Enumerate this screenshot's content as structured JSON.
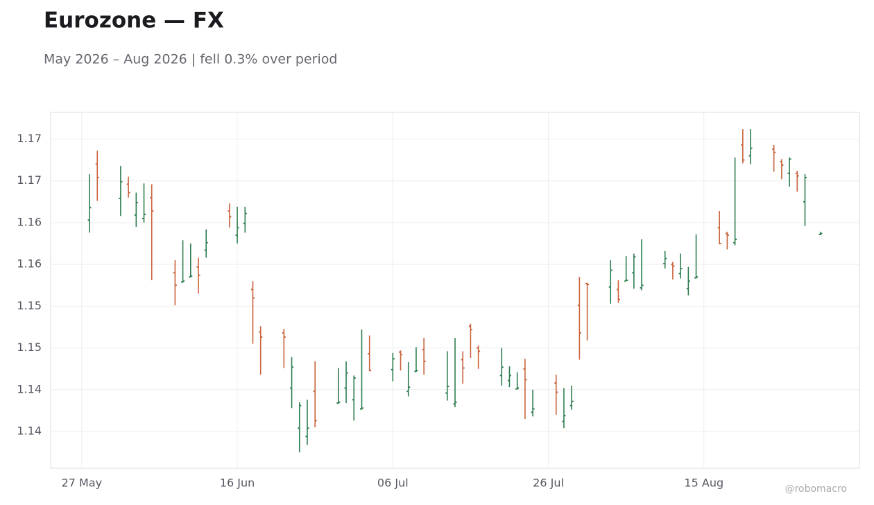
{
  "chart_data": {
    "type": "ohlc",
    "title": "Eurozone — FX",
    "subtitle": "May 2026 – Aug 2026 | fell 0.3% over period",
    "credit": "@robomacro",
    "color_up": "#2e7d4f",
    "color_down": "#c8623c",
    "grid": true,
    "x": [
      "2026-05-28",
      "2026-05-29",
      "2026-06-01",
      "2026-06-02",
      "2026-06-03",
      "2026-06-04",
      "2026-06-05",
      "2026-06-08",
      "2026-06-09",
      "2026-06-10",
      "2026-06-11",
      "2026-06-12",
      "2026-06-15",
      "2026-06-16",
      "2026-06-17",
      "2026-06-18",
      "2026-06-19",
      "2026-06-22",
      "2026-06-23",
      "2026-06-24",
      "2026-06-25",
      "2026-06-26",
      "2026-06-29",
      "2026-06-30",
      "2026-07-01",
      "2026-07-02",
      "2026-07-03",
      "2026-07-06",
      "2026-07-07",
      "2026-07-08",
      "2026-07-09",
      "2026-07-10",
      "2026-07-13",
      "2026-07-14",
      "2026-07-15",
      "2026-07-16",
      "2026-07-17",
      "2026-07-20",
      "2026-07-21",
      "2026-07-22",
      "2026-07-23",
      "2026-07-24",
      "2026-07-27",
      "2026-07-28",
      "2026-07-29",
      "2026-07-30",
      "2026-07-31",
      "2026-08-03",
      "2026-08-04",
      "2026-08-05",
      "2026-08-06",
      "2026-08-07",
      "2026-08-10",
      "2026-08-11",
      "2026-08-12",
      "2026-08-13",
      "2026-08-14",
      "2026-08-17",
      "2026-08-18",
      "2026-08-19",
      "2026-08-20",
      "2026-08-21",
      "2026-08-24",
      "2026-08-25",
      "2026-08-26",
      "2026-08-27",
      "2026-08-28",
      "2026-08-30"
    ],
    "open": [
      1.1628,
      1.1695,
      1.1654,
      1.1671,
      1.1634,
      1.163,
      1.1655,
      1.1565,
      1.1554,
      1.156,
      1.1572,
      1.1592,
      1.1639,
      1.161,
      1.1624,
      1.1545,
      1.1494,
      1.1493,
      1.1427,
      1.1379,
      1.1369,
      1.1423,
      1.1409,
      1.1427,
      1.1413,
      1.1402,
      1.1468,
      1.1449,
      1.147,
      1.1423,
      1.1447,
      1.1473,
      1.1421,
      1.1408,
      1.1461,
      1.1501,
      1.1475,
      1.1442,
      1.1436,
      1.1426,
      1.145,
      1.1398,
      1.1433,
      1.1387,
      1.1406,
      1.1526,
      1.1552,
      1.1548,
      1.1545,
      1.1555,
      1.1565,
      1.1547,
      1.1576,
      1.1575,
      1.1564,
      1.1546,
      1.1559,
      1.1619,
      1.1612,
      1.1601,
      1.1718,
      1.1705,
      1.1713,
      1.1698,
      1.1684,
      1.1684,
      1.165,
      1.1611
    ],
    "high": [
      1.1683,
      1.1711,
      1.1693,
      1.168,
      1.1661,
      1.1672,
      1.1671,
      1.158,
      1.1604,
      1.16,
      1.1583,
      1.1617,
      1.1648,
      1.1644,
      1.1644,
      1.1555,
      1.1501,
      1.1498,
      1.1464,
      1.141,
      1.1413,
      1.1459,
      1.1451,
      1.1459,
      1.1442,
      1.1497,
      1.149,
      1.1469,
      1.1472,
      1.1458,
      1.1476,
      1.1487,
      1.1471,
      1.1487,
      1.1471,
      1.1504,
      1.1478,
      1.1475,
      1.1453,
      1.1446,
      1.1462,
      1.1425,
      1.1443,
      1.1427,
      1.143,
      1.156,
      1.1553,
      1.158,
      1.1556,
      1.1585,
      1.1588,
      1.1605,
      1.1591,
      1.1578,
      1.1588,
      1.1572,
      1.1611,
      1.1639,
      1.1614,
      1.1703,
      1.1737,
      1.1737,
      1.1718,
      1.1701,
      1.1703,
      1.1687,
      1.1683,
      1.1614
    ],
    "low": [
      1.1613,
      1.1651,
      1.1633,
      1.1655,
      1.162,
      1.1625,
      1.1556,
      1.1526,
      1.1553,
      1.156,
      1.154,
      1.1583,
      1.1619,
      1.16,
      1.1613,
      1.148,
      1.1443,
      1.1451,
      1.1403,
      1.135,
      1.1359,
      1.138,
      1.1408,
      1.1409,
      1.1388,
      1.1401,
      1.1447,
      1.1435,
      1.1448,
      1.1417,
      1.1446,
      1.1443,
      1.1412,
      1.1404,
      1.1432,
      1.1463,
      1.145,
      1.143,
      1.1428,
      1.1425,
      1.139,
      1.1393,
      1.1395,
      1.1379,
      1.1401,
      1.1461,
      1.1484,
      1.1528,
      1.1529,
      1.1555,
      1.1546,
      1.1544,
      1.157,
      1.1557,
      1.1558,
      1.1538,
      1.1558,
      1.1599,
      1.1593,
      1.1598,
      1.1696,
      1.1695,
      1.1686,
      1.1677,
      1.1668,
      1.1662,
      1.1621,
      1.161
    ],
    "close": [
      1.1643,
      1.1679,
      1.1674,
      1.1661,
      1.1649,
      1.1635,
      1.1639,
      1.155,
      1.1555,
      1.1561,
      1.1562,
      1.1601,
      1.1632,
      1.1619,
      1.1636,
      1.1535,
      1.1488,
      1.1488,
      1.1452,
      1.1406,
      1.1379,
      1.1388,
      1.141,
      1.1445,
      1.1439,
      1.1403,
      1.1448,
      1.1462,
      1.1467,
      1.1428,
      1.1448,
      1.1459,
      1.1429,
      1.141,
      1.1451,
      1.1497,
      1.1471,
      1.1452,
      1.1442,
      1.1427,
      1.1437,
      1.1402,
      1.1422,
      1.1394,
      1.1411,
      1.1493,
      1.1551,
      1.1568,
      1.1533,
      1.1556,
      1.1584,
      1.155,
      1.1582,
      1.1573,
      1.157,
      1.1555,
      1.156,
      1.16,
      1.161,
      1.1605,
      1.17,
      1.1714,
      1.1709,
      1.1694,
      1.1701,
      1.1681,
      1.1679,
      1.1612
    ],
    "xlim": [
      "2026-05-23",
      "2026-09-04"
    ],
    "xticks": [
      {
        "value": "2026-05-27",
        "label": "27 May"
      },
      {
        "value": "2026-06-16",
        "label": "16 Jun"
      },
      {
        "value": "2026-07-06",
        "label": "06 Jul"
      },
      {
        "value": "2026-07-26",
        "label": "26 Jul"
      },
      {
        "value": "2026-08-15",
        "label": "15 Aug"
      }
    ],
    "ylim": [
      1.1331,
      1.1757
    ],
    "yticks": [
      {
        "value": 1.1375,
        "label": "1.14"
      },
      {
        "value": 1.1425,
        "label": "1.14"
      },
      {
        "value": 1.1475,
        "label": "1.15"
      },
      {
        "value": 1.1525,
        "label": "1.15"
      },
      {
        "value": 1.1575,
        "label": "1.16"
      },
      {
        "value": 1.1625,
        "label": "1.16"
      },
      {
        "value": 1.1675,
        "label": "1.17"
      },
      {
        "value": 1.1725,
        "label": "1.17"
      }
    ]
  }
}
